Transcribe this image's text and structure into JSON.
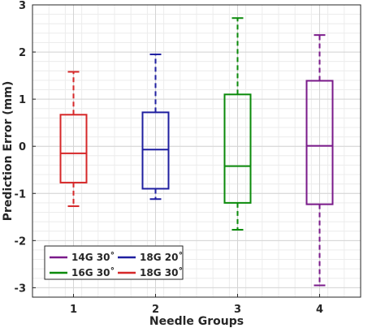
{
  "chart_data": {
    "type": "box",
    "title": "",
    "xlabel": "Needle Groups",
    "ylabel": "Prediction Error (mm)",
    "categories": [
      "1",
      "2",
      "3",
      "4"
    ],
    "ylim": [
      -3.2,
      3.0
    ],
    "yticks": [
      -3,
      -2,
      -1,
      0,
      1,
      2,
      3
    ],
    "grid": true,
    "legend_position": "bottom-left",
    "series": [
      {
        "name": "18G 30˚",
        "category": "1",
        "color": "#d62728",
        "whisker_low": -1.27,
        "q1": -0.77,
        "median": -0.15,
        "q3": 0.67,
        "whisker_high": 1.58
      },
      {
        "name": "18G 20˚",
        "category": "2",
        "color": "#1f1fa0",
        "whisker_low": -1.12,
        "q1": -0.9,
        "median": -0.07,
        "q3": 0.72,
        "whisker_high": 1.95
      },
      {
        "name": "16G 30˚",
        "category": "3",
        "color": "#0a8a0a",
        "whisker_low": -1.77,
        "q1": -1.2,
        "median": -0.42,
        "q3": 1.1,
        "whisker_high": 2.72
      },
      {
        "name": "14G 30˚",
        "category": "4",
        "color": "#7a1a8a",
        "whisker_low": -2.95,
        "q1": -1.23,
        "median": 0.01,
        "q3": 1.39,
        "whisker_high": 2.36
      }
    ],
    "legend_order": [
      "14G 30˚",
      "18G 20˚",
      "16G 30˚",
      "18G 30˚"
    ]
  }
}
